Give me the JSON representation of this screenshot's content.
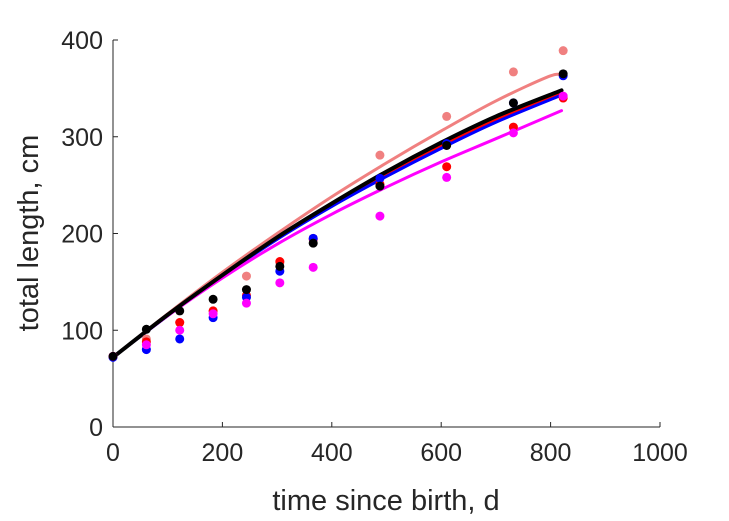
{
  "chart_data": {
    "type": "scatter",
    "title": "",
    "xlabel": "time since birth, d",
    "ylabel": "total length, cm",
    "xlim": [
      0,
      1000
    ],
    "ylim": [
      0,
      400
    ],
    "xticks": [
      0,
      200,
      400,
      600,
      800,
      1000
    ],
    "yticks": [
      0,
      100,
      200,
      300,
      400
    ],
    "xtick_labels": [
      "0",
      "200",
      "400",
      "600",
      "800",
      "1000"
    ],
    "ytick_labels": [
      "0",
      "100",
      "200",
      "300",
      "400"
    ],
    "grid": false,
    "legend": "none",
    "series": [
      {
        "color": "#f08080",
        "points": [
          [
            0,
            73
          ],
          [
            61,
            91
          ],
          [
            122,
            108
          ],
          [
            183,
            120
          ],
          [
            244,
            156
          ],
          [
            305,
            170
          ],
          [
            366,
            195
          ],
          [
            488,
            281
          ],
          [
            610,
            321
          ],
          [
            732,
            367
          ],
          [
            823,
            389
          ]
        ],
        "fit": [
          [
            0,
            72
          ],
          [
            100,
            117
          ],
          [
            200,
            160
          ],
          [
            300,
            200
          ],
          [
            400,
            238
          ],
          [
            500,
            273
          ],
          [
            600,
            306
          ],
          [
            700,
            337
          ],
          [
            800,
            363
          ],
          [
            800,
            363
          ],
          [
            820,
            362
          ]
        ]
      },
      {
        "color": "#ff0000",
        "points": [
          [
            0,
            73
          ],
          [
            61,
            88
          ],
          [
            122,
            108
          ],
          [
            183,
            120
          ],
          [
            244,
            136
          ],
          [
            305,
            171
          ],
          [
            366,
            194
          ],
          [
            488,
            251
          ],
          [
            610,
            269
          ],
          [
            732,
            310
          ],
          [
            823,
            340
          ]
        ],
        "fit": [
          [
            0,
            72
          ],
          [
            100,
            116
          ],
          [
            200,
            157
          ],
          [
            300,
            195
          ],
          [
            400,
            230
          ],
          [
            500,
            262
          ],
          [
            600,
            291
          ],
          [
            700,
            318
          ],
          [
            820,
            346
          ]
        ]
      },
      {
        "color": "#0000ff",
        "points": [
          [
            0,
            72
          ],
          [
            61,
            80
          ],
          [
            122,
            91
          ],
          [
            183,
            113
          ],
          [
            244,
            134
          ],
          [
            305,
            161
          ],
          [
            366,
            195
          ],
          [
            488,
            257
          ],
          [
            610,
            293
          ],
          [
            732,
            335
          ],
          [
            823,
            363
          ]
        ],
        "fit": [
          [
            0,
            72
          ],
          [
            100,
            115
          ],
          [
            200,
            156
          ],
          [
            300,
            194
          ],
          [
            400,
            228
          ],
          [
            500,
            259
          ],
          [
            600,
            288
          ],
          [
            700,
            315
          ],
          [
            820,
            343
          ]
        ]
      },
      {
        "color": "#ff00ff",
        "points": [
          [
            0,
            73
          ],
          [
            61,
            85
          ],
          [
            122,
            100
          ],
          [
            183,
            117
          ],
          [
            244,
            128
          ],
          [
            305,
            149
          ],
          [
            366,
            165
          ],
          [
            488,
            218
          ],
          [
            610,
            258
          ],
          [
            732,
            304
          ],
          [
            823,
            342
          ]
        ],
        "fit": [
          [
            0,
            72
          ],
          [
            100,
            115
          ],
          [
            200,
            154
          ],
          [
            300,
            189
          ],
          [
            400,
            220
          ],
          [
            500,
            248
          ],
          [
            600,
            274
          ],
          [
            700,
            298
          ],
          [
            820,
            327
          ]
        ]
      },
      {
        "color": "#000000",
        "points": [
          [
            0,
            73
          ],
          [
            61,
            101
          ],
          [
            122,
            120
          ],
          [
            183,
            132
          ],
          [
            244,
            142
          ],
          [
            305,
            166
          ],
          [
            366,
            190
          ],
          [
            488,
            249
          ],
          [
            610,
            291
          ],
          [
            732,
            335
          ],
          [
            823,
            365
          ]
        ],
        "fit": [
          [
            0,
            72
          ],
          [
            100,
            116
          ],
          [
            200,
            157
          ],
          [
            300,
            196
          ],
          [
            400,
            231
          ],
          [
            500,
            264
          ],
          [
            600,
            294
          ],
          [
            700,
            321
          ],
          [
            820,
            348
          ]
        ]
      }
    ]
  }
}
